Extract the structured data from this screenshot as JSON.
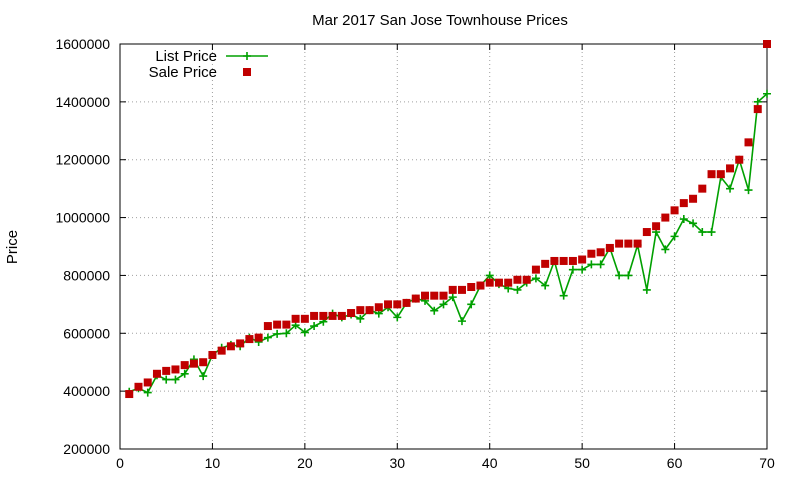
{
  "chart_data": {
    "type": "scatter",
    "title": "Mar 2017 San Jose Townhouse Prices",
    "xlabel": "",
    "ylabel": "Price",
    "xlim": [
      0,
      70
    ],
    "ylim": [
      200000,
      1600000
    ],
    "xticks": [
      0,
      10,
      20,
      30,
      40,
      50,
      60,
      70
    ],
    "yticks": [
      200000,
      400000,
      600000,
      800000,
      1000000,
      1200000,
      1400000,
      1600000
    ],
    "grid": true,
    "legend_position": "top-left",
    "x": [
      1,
      2,
      3,
      4,
      5,
      6,
      7,
      8,
      9,
      10,
      11,
      12,
      13,
      14,
      15,
      16,
      17,
      18,
      19,
      20,
      21,
      22,
      23,
      24,
      25,
      26,
      27,
      28,
      29,
      30,
      31,
      32,
      33,
      34,
      35,
      36,
      37,
      38,
      39,
      40,
      41,
      42,
      43,
      44,
      45,
      46,
      47,
      48,
      49,
      50,
      51,
      52,
      53,
      54,
      55,
      56,
      57,
      58,
      59,
      60,
      61,
      62,
      63,
      64,
      65,
      66,
      67,
      68,
      69,
      70
    ],
    "series": [
      {
        "name": "List Price",
        "style": "line+cross",
        "color": "#00a000",
        "values": [
          398000,
          410000,
          395000,
          455000,
          440000,
          440000,
          460000,
          510000,
          452000,
          525000,
          550000,
          560000,
          555000,
          585000,
          570000,
          585000,
          598000,
          600000,
          628000,
          603000,
          625000,
          640000,
          668000,
          655000,
          665000,
          650000,
          680000,
          668000,
          690000,
          655000,
          705000,
          720000,
          712000,
          678000,
          700000,
          725000,
          642000,
          700000,
          765000,
          800000,
          770000,
          755000,
          750000,
          775000,
          790000,
          765000,
          850000,
          730000,
          820000,
          820000,
          838000,
          838000,
          895000,
          800000,
          800000,
          905000,
          750000,
          950000,
          890000,
          935000,
          995000,
          980000,
          950000,
          950000,
          1140000,
          1100000,
          1200000,
          1095000,
          1400000,
          1428000
        ]
      },
      {
        "name": "Sale Price",
        "style": "square",
        "color": "#c00000",
        "values": [
          390000,
          415000,
          430000,
          460000,
          470000,
          475000,
          490000,
          495000,
          500000,
          525000,
          540000,
          555000,
          565000,
          580000,
          585000,
          625000,
          630000,
          630000,
          650000,
          650000,
          660000,
          660000,
          660000,
          660000,
          670000,
          680000,
          680000,
          690000,
          700000,
          700000,
          705000,
          720000,
          730000,
          730000,
          730000,
          750000,
          750000,
          760000,
          765000,
          775000,
          775000,
          775000,
          785000,
          785000,
          820000,
          840000,
          850000,
          850000,
          850000,
          855000,
          875000,
          880000,
          895000,
          910000,
          910000,
          910000,
          950000,
          970000,
          1000000,
          1025000,
          1050000,
          1065000,
          1100000,
          1150000,
          1150000,
          1170000,
          1200000,
          1260000,
          1375000,
          1600000
        ]
      }
    ]
  }
}
